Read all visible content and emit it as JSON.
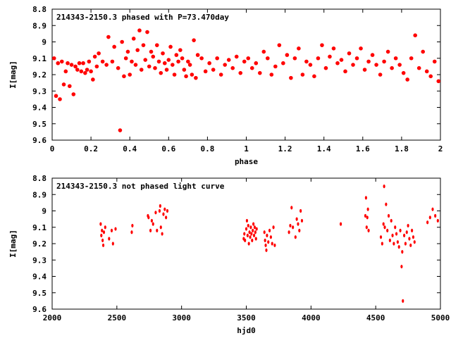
{
  "chart_data": [
    {
      "type": "scatter",
      "title": "214343-2150.3 phased with P=73.470day",
      "xlabel": "phase",
      "ylabel": "I[mag]",
      "xlim": [
        0,
        2
      ],
      "ylim": [
        9.6,
        8.8
      ],
      "y_inverted": true,
      "xticks": [
        "0",
        "0.2",
        "0.4",
        "0.6",
        "0.8",
        "1",
        "1.2",
        "1.4",
        "1.6",
        "1.8",
        "2"
      ],
      "yticks": [
        "8.8",
        "8.9",
        "9",
        "9.1",
        "9.2",
        "9.3",
        "9.4",
        "9.5",
        "9.6"
      ],
      "color": "#ff0000",
      "grid": false,
      "series": [
        {
          "x": [
            0.01,
            0.02,
            0.03,
            0.04,
            0.05,
            0.06,
            0.07,
            0.08,
            0.09,
            0.1,
            0.11,
            0.12,
            0.13,
            0.14,
            0.15,
            0.16,
            0.17,
            0.18,
            0.19,
            0.2,
            0.21,
            0.22,
            0.23,
            0.24,
            0.26,
            0.28,
            0.29,
            0.31,
            0.32,
            0.34,
            0.35,
            0.36,
            0.37,
            0.38,
            0.39,
            0.4,
            0.41,
            0.42,
            0.43,
            0.44,
            0.45,
            0.46,
            0.47,
            0.48,
            0.49,
            0.5,
            0.51,
            0.52,
            0.53,
            0.54,
            0.55,
            0.56,
            0.57,
            0.58,
            0.59,
            0.6,
            0.61,
            0.62,
            0.63,
            0.64,
            0.65,
            0.66,
            0.67,
            0.68,
            0.69,
            0.7,
            0.71,
            0.72,
            0.73,
            0.74,
            0.75,
            0.77,
            0.79,
            0.81,
            0.83,
            0.85,
            0.87,
            0.89,
            0.91,
            0.93,
            0.95,
            0.97,
            0.99,
            1.01,
            1.03,
            1.05,
            1.07,
            1.09,
            1.11,
            1.13,
            1.15,
            1.17,
            1.19,
            1.21,
            1.23,
            1.25,
            1.27,
            1.29,
            1.31,
            1.33,
            1.35,
            1.37,
            1.39,
            1.41,
            1.43,
            1.45,
            1.47,
            1.49,
            1.51,
            1.53,
            1.55,
            1.57,
            1.59,
            1.61,
            1.63,
            1.65,
            1.67,
            1.69,
            1.71,
            1.73,
            1.75,
            1.77,
            1.79,
            1.81,
            1.83,
            1.85,
            1.87,
            1.89,
            1.91,
            1.93,
            1.95,
            1.97,
            1.99
          ],
          "y": [
            9.1,
            9.33,
            9.13,
            9.35,
            9.12,
            9.26,
            9.18,
            9.13,
            9.27,
            9.14,
            9.32,
            9.15,
            9.17,
            9.13,
            9.18,
            9.13,
            9.19,
            9.17,
            9.12,
            9.18,
            9.23,
            9.09,
            9.15,
            9.07,
            9.12,
            9.14,
            8.97,
            9.12,
            9.03,
            9.16,
            9.54,
            9.0,
            9.21,
            9.1,
            9.06,
            9.2,
            9.12,
            8.98,
            9.14,
            9.05,
            8.93,
            9.17,
            9.02,
            9.11,
            8.94,
            9.15,
            9.06,
            9.09,
            9.16,
            9.02,
            9.12,
            9.19,
            9.07,
            9.13,
            9.17,
            9.11,
            9.03,
            9.14,
            9.2,
            9.08,
            9.12,
            9.05,
            9.1,
            9.17,
            9.21,
            9.12,
            9.14,
            9.2,
            8.99,
            9.22,
            9.08,
            9.1,
            9.18,
            9.13,
            9.17,
            9.1,
            9.2,
            9.14,
            9.11,
            9.16,
            9.09,
            9.19,
            9.12,
            9.1,
            9.16,
            9.13,
            9.19,
            9.06,
            9.1,
            9.2,
            9.15,
            9.02,
            9.13,
            9.08,
            9.22,
            9.1,
            9.04,
            9.2,
            9.12,
            9.14,
            9.21,
            9.1,
            9.02,
            9.16,
            9.09,
            9.04,
            9.13,
            9.11,
            9.18,
            9.07,
            9.14,
            9.1,
            9.04,
            9.17,
            9.12,
            9.08,
            9.14,
            9.2,
            9.12,
            9.06,
            9.16,
            9.1,
            9.14,
            9.19,
            9.23,
            9.1,
            8.96,
            9.16,
            9.06,
            9.18,
            9.21,
            9.12,
            9.24
          ]
        }
      ]
    },
    {
      "type": "scatter",
      "title": "214343-2150.3 not phased light curve",
      "xlabel": "hjd0",
      "ylabel": "I[mag]",
      "xlim": [
        2000,
        5000
      ],
      "ylim": [
        9.6,
        8.8
      ],
      "y_inverted": true,
      "xticks": [
        "2000",
        "2500",
        "3000",
        "3500",
        "4000",
        "4500",
        "5000"
      ],
      "yticks": [
        "8.8",
        "8.9",
        "9",
        "9.1",
        "9.2",
        "9.3",
        "9.4",
        "9.5",
        "9.6"
      ],
      "color": "#ff0000",
      "grid": false,
      "series": [
        {
          "x": [
            2375,
            2380,
            2385,
            2390,
            2395,
            2400,
            2410,
            2440,
            2460,
            2470,
            2490,
            2615,
            2620,
            2740,
            2745,
            2760,
            2770,
            2780,
            2800,
            2810,
            2830,
            2835,
            2840,
            2850,
            2860,
            2870,
            2880,
            2890,
            3480,
            3485,
            3490,
            3500,
            3505,
            3510,
            3515,
            3520,
            3525,
            3530,
            3535,
            3540,
            3545,
            3550,
            3555,
            3560,
            3565,
            3570,
            3575,
            3580,
            3640,
            3645,
            3650,
            3655,
            3660,
            3670,
            3680,
            3690,
            3700,
            3710,
            3720,
            3830,
            3840,
            3850,
            3860,
            3880,
            3890,
            3900,
            3910,
            3920,
            3930,
            4230,
            4420,
            4425,
            4430,
            4435,
            4440,
            4445,
            4540,
            4550,
            4560,
            4565,
            4570,
            4580,
            4590,
            4600,
            4610,
            4620,
            4630,
            4640,
            4650,
            4660,
            4670,
            4680,
            4690,
            4700,
            4705,
            4710,
            4720,
            4730,
            4740,
            4750,
            4760,
            4770,
            4780,
            4790,
            4800,
            4900,
            4920,
            4940,
            4960,
            4980
          ],
          "y": [
            9.08,
            9.15,
            9.12,
            9.18,
            9.21,
            9.13,
            9.1,
            9.17,
            9.12,
            9.2,
            9.11,
            9.13,
            9.09,
            9.03,
            9.04,
            9.12,
            9.06,
            9.08,
            9.01,
            9.12,
            9.0,
            8.97,
            9.1,
            9.14,
            9.02,
            8.99,
            9.04,
            9.0,
            9.17,
            9.14,
            9.18,
            9.11,
            9.06,
            9.15,
            9.09,
            9.2,
            9.13,
            9.16,
            9.1,
            9.14,
            9.18,
            9.12,
            9.08,
            9.15,
            9.1,
            9.13,
            9.17,
            9.11,
            9.13,
            9.18,
            9.21,
            9.24,
            9.15,
            9.19,
            9.12,
            9.16,
            9.2,
            9.1,
            9.21,
            9.13,
            9.09,
            8.98,
            9.1,
            9.16,
            9.05,
            9.08,
            9.12,
            9.0,
            9.06,
            9.08,
            9.03,
            8.92,
            9.1,
            9.04,
            8.99,
            9.12,
            9.16,
            9.2,
            9.08,
            8.85,
            9.1,
            8.96,
            9.12,
            9.03,
            9.18,
            9.06,
            9.15,
            9.2,
            9.1,
            9.14,
            9.19,
            9.22,
            9.12,
            9.34,
            9.25,
            9.55,
            9.15,
            9.2,
            9.13,
            9.09,
            9.17,
            9.21,
            9.12,
            9.16,
            9.19,
            9.07,
            9.04,
            8.99,
            9.03,
            9.06
          ]
        }
      ]
    }
  ]
}
